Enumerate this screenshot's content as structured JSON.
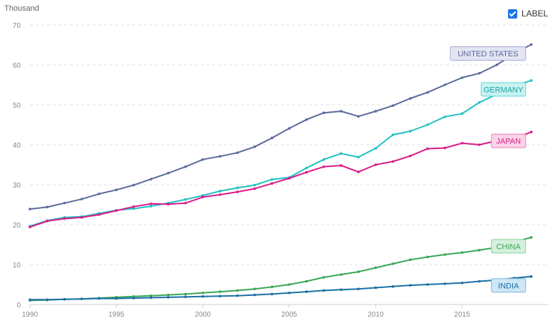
{
  "unit_label": "Thousand",
  "toggle": {
    "label": "LABEL",
    "checked": true
  },
  "chart_data": {
    "type": "line",
    "ylim": [
      0,
      70
    ],
    "xlim": [
      1990,
      2020
    ],
    "y_ticks": [
      0,
      10,
      20,
      30,
      40,
      50,
      60,
      70
    ],
    "x_ticks": [
      1990,
      1995,
      2000,
      2005,
      2010,
      2015
    ],
    "grid": true,
    "x": [
      1990,
      1991,
      1992,
      1993,
      1994,
      1995,
      1996,
      1997,
      1998,
      1999,
      2000,
      2001,
      2002,
      2003,
      2004,
      2005,
      2006,
      2007,
      2008,
      2009,
      2010,
      2011,
      2012,
      2013,
      2014,
      2015,
      2016,
      2017,
      2018,
      2019
    ],
    "series": [
      {
        "name": "UNITED STATES",
        "color": "#5b6a9c",
        "label_bg": "#e3e5f3",
        "label_border": "#a3a9cf",
        "label_text": "#5b6a9c",
        "values": [
          23.9,
          24.4,
          25.4,
          26.4,
          27.7,
          28.7,
          29.9,
          31.4,
          32.9,
          34.5,
          36.3,
          37.1,
          38.0,
          39.5,
          41.7,
          44.1,
          46.3,
          48.0,
          48.4,
          47.1,
          48.4,
          49.8,
          51.6,
          53.1,
          55.0,
          56.8,
          57.9,
          60.0,
          62.8,
          65.1
        ]
      },
      {
        "name": "GERMANY",
        "color": "#20c1c1",
        "label_bg": "#c9f2f2",
        "label_border": "#5ed5d5",
        "label_text": "#18a5a5",
        "values": [
          19.6,
          21.0,
          21.8,
          22.0,
          22.8,
          23.6,
          24.0,
          24.6,
          25.4,
          26.3,
          27.3,
          28.4,
          29.2,
          29.9,
          31.3,
          31.8,
          34.2,
          36.3,
          37.8,
          36.9,
          39.1,
          42.5,
          43.4,
          45.0,
          47.0,
          47.8,
          50.6,
          52.6,
          54.7,
          56.1
        ]
      },
      {
        "name": "JAPAN",
        "color": "#d81b8a",
        "label_bg": "#fbd3e8",
        "label_border": "#ec7fbb",
        "label_text": "#d81b8a",
        "values": [
          19.4,
          20.9,
          21.5,
          21.8,
          22.5,
          23.5,
          24.5,
          25.2,
          25.1,
          25.4,
          26.9,
          27.5,
          28.2,
          29.0,
          30.3,
          31.6,
          33.1,
          34.5,
          34.8,
          33.2,
          35.0,
          35.8,
          37.2,
          39.0,
          39.2,
          40.4,
          40.0,
          41.0,
          41.5,
          43.2
        ]
      },
      {
        "name": "CHINA",
        "color": "#3aa655",
        "label_bg": "#d5f0dc",
        "label_border": "#86d197",
        "label_text": "#3aa655",
        "values": [
          1.0,
          1.1,
          1.3,
          1.4,
          1.6,
          1.8,
          2.0,
          2.2,
          2.4,
          2.6,
          2.9,
          3.2,
          3.5,
          3.9,
          4.4,
          5.0,
          5.8,
          6.8,
          7.5,
          8.2,
          9.2,
          10.2,
          11.2,
          11.9,
          12.5,
          13.0,
          13.6,
          14.3,
          15.6,
          16.8
        ]
      },
      {
        "name": "INDIA",
        "color": "#1a6fa5",
        "label_bg": "#cfe6f6",
        "label_border": "#7fb6dd",
        "label_text": "#1a6fa5",
        "values": [
          1.2,
          1.2,
          1.3,
          1.4,
          1.5,
          1.5,
          1.6,
          1.7,
          1.8,
          1.9,
          2.0,
          2.1,
          2.2,
          2.4,
          2.6,
          2.9,
          3.2,
          3.5,
          3.7,
          3.9,
          4.2,
          4.5,
          4.8,
          5.0,
          5.2,
          5.4,
          5.8,
          6.1,
          6.6,
          7.0
        ]
      }
    ]
  }
}
